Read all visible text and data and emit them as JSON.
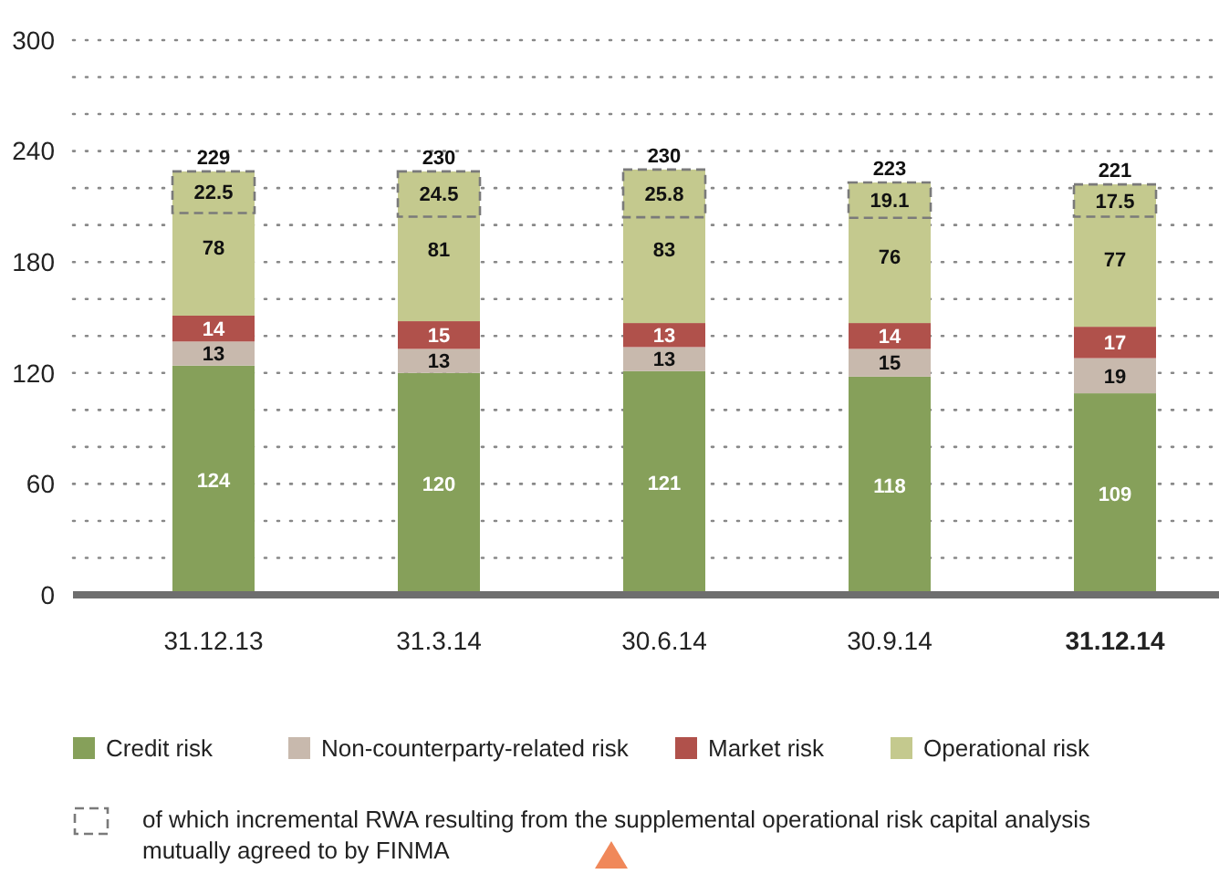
{
  "chart_data": {
    "type": "bar",
    "stacked": true,
    "categories": [
      "31.12.13",
      "31.3.14",
      "30.6.14",
      "30.9.14",
      "31.12.14"
    ],
    "series": [
      {
        "name": "Credit risk",
        "color": "#86a05a",
        "values": [
          124,
          120,
          121,
          118,
          109
        ]
      },
      {
        "name": "Non-counterparty-related risk",
        "color": "#c8b9ad",
        "values": [
          13,
          13,
          13,
          15,
          19
        ]
      },
      {
        "name": "Market risk",
        "color": "#b0514b",
        "values": [
          14,
          15,
          13,
          14,
          17
        ]
      },
      {
        "name": "Operational risk",
        "color": "#c4c98e",
        "values": [
          78,
          81,
          83,
          76,
          77
        ]
      }
    ],
    "totals": [
      "229",
      "230",
      "230",
      "223",
      "221"
    ],
    "data_labels": true,
    "annotations": [
      {
        "text": "22.5",
        "x": "31.12.13",
        "y": 229
      },
      {
        "text": "24.5",
        "x": "31.3.14",
        "y": 229
      },
      {
        "text": "25.8",
        "x": "30.6.14",
        "y": 230
      },
      {
        "text": "19.1",
        "x": "30.9.14",
        "y": 223
      },
      {
        "text": "17.5",
        "x": "31.12.14",
        "y": 222
      },
      "of which incremental RWA resulting from the supplemental operational risk capital analysis mutually agreed to by FINMA"
    ],
    "ylim": [
      0,
      300
    ],
    "yticks": [
      0,
      {
        "value": 20,
        "label": null
      },
      {
        "value": 40,
        "label": null
      },
      60,
      {
        "value": 80,
        "label": null
      },
      {
        "value": 100,
        "label": null
      },
      120,
      {
        "value": 140,
        "label": null
      },
      {
        "value": 160,
        "label": null
      },
      180,
      {
        "value": 200,
        "label": null
      },
      {
        "value": 220,
        "label": null
      },
      240,
      {
        "value": 260,
        "label": null
      },
      {
        "value": 280,
        "label": null
      },
      300
    ],
    "grid": "y",
    "legend": "bottom"
  }
}
